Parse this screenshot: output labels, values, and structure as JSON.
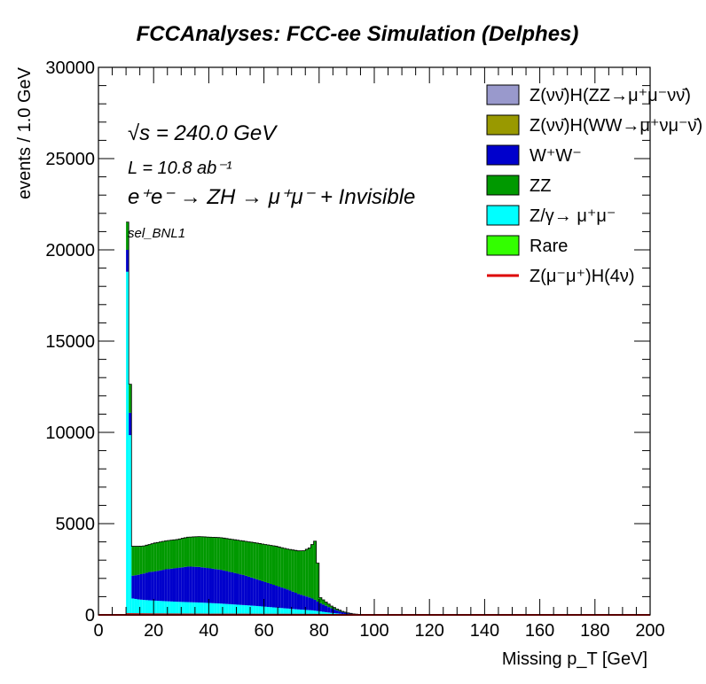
{
  "chart_data": {
    "type": "bar",
    "stacked": true,
    "title": "FCCAnalyses: FCC-ee Simulation (Delphes)",
    "xlabel": "Missing p_T [GeV]",
    "ylabel": "events / 1.0 GeV",
    "xlim": [
      0,
      200
    ],
    "ylim": [
      0,
      30000
    ],
    "x_ticks": [
      0,
      20,
      40,
      60,
      80,
      100,
      120,
      140,
      160,
      180,
      200
    ],
    "y_ticks": [
      0,
      5000,
      10000,
      15000,
      20000,
      25000,
      30000
    ],
    "annotations": {
      "sqrt_s": "√s = 240.0 GeV",
      "lumi": "L = 10.8 ab⁻¹",
      "process": "e⁺e⁻ → ZH → μ⁺μ⁻ + Invisible",
      "selection": "sel_BNL1"
    },
    "x": [
      10,
      12,
      14,
      16,
      18,
      20,
      24,
      28,
      32,
      36,
      40,
      44,
      48,
      52,
      56,
      60,
      64,
      68,
      72,
      74,
      76,
      77,
      78,
      79,
      80,
      82,
      84,
      86,
      88,
      90,
      92,
      94,
      96,
      98,
      100
    ],
    "series": [
      {
        "name": "Z/γ→ μ⁺μ⁻",
        "color": "#00ffff",
        "values": [
          18800,
          900,
          850,
          820,
          800,
          780,
          750,
          720,
          700,
          680,
          650,
          620,
          580,
          540,
          500,
          450,
          400,
          350,
          300,
          280,
          260,
          250,
          230,
          210,
          190,
          150,
          110,
          80,
          50,
          30,
          15,
          8,
          4,
          2,
          0
        ]
      },
      {
        "name": "W⁺W⁻",
        "color": "#0000cc",
        "values": [
          1200,
          1250,
          1350,
          1450,
          1550,
          1600,
          1750,
          1850,
          1950,
          1950,
          1900,
          1850,
          1750,
          1650,
          1500,
          1350,
          1200,
          1050,
          850,
          780,
          700,
          650,
          600,
          520,
          450,
          350,
          250,
          170,
          100,
          60,
          30,
          15,
          8,
          3,
          0
        ]
      },
      {
        "name": "ZZ",
        "color": "#009900",
        "values": [
          1500,
          1600,
          1550,
          1500,
          1500,
          1550,
          1550,
          1550,
          1600,
          1650,
          1700,
          1750,
          1800,
          1850,
          1950,
          2050,
          2150,
          2200,
          2350,
          2450,
          2700,
          2950,
          3200,
          2100,
          300,
          200,
          120,
          70,
          40,
          20,
          10,
          5,
          2,
          1,
          0
        ]
      },
      {
        "name": "Rare",
        "color": "#33ff00",
        "values": [
          20,
          10,
          10,
          10,
          10,
          10,
          10,
          10,
          10,
          10,
          10,
          10,
          10,
          10,
          10,
          10,
          10,
          10,
          10,
          10,
          10,
          10,
          10,
          10,
          5,
          5,
          5,
          2,
          2,
          1,
          0,
          0,
          0,
          0,
          0
        ]
      }
    ],
    "legend": [
      {
        "label": "Z(νν̄)H(ZZ→μ⁺μ⁻νν̄)",
        "color": "#9999cc",
        "style": "box"
      },
      {
        "label": "Z(νν̄)H(WW→μ⁺νμ⁻ν̄)",
        "color": "#999900",
        "style": "box"
      },
      {
        "label": "W⁺W⁻",
        "color": "#0000cc",
        "style": "box"
      },
      {
        "label": "ZZ",
        "color": "#009900",
        "style": "box"
      },
      {
        "label": "Z/γ→ μ⁺μ⁻",
        "color": "#00ffff",
        "style": "box"
      },
      {
        "label": "Rare",
        "color": "#33ff00",
        "style": "box"
      },
      {
        "label": "Z(μ⁻μ⁺)H(4ν)",
        "color": "#dd0000",
        "style": "line"
      }
    ],
    "legend_position": "top-right",
    "signal": {
      "name": "Z(μ⁻μ⁺)H(4ν)",
      "color": "#dd0000",
      "x": [
        10,
        20,
        30,
        40,
        50,
        60,
        70,
        80,
        90,
        100,
        200
      ],
      "values": [
        40,
        30,
        25,
        20,
        18,
        15,
        10,
        5,
        2,
        0,
        0
      ]
    }
  }
}
